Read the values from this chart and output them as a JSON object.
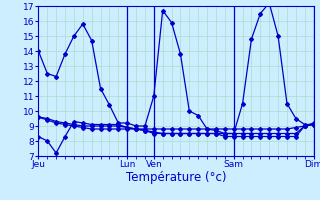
{
  "background_color": "#cceeff",
  "grid_color": "#aaddcc",
  "line_color": "#0000cc",
  "ylim": [
    7,
    17
  ],
  "yticks": [
    7,
    8,
    9,
    10,
    11,
    12,
    13,
    14,
    15,
    16,
    17
  ],
  "xlabel": "Température (°c)",
  "xlabel_color": "#0000cc",
  "day_labels": [
    "Jeu",
    "Lun",
    "Ven",
    "Sam",
    "Dim"
  ],
  "day_positions": [
    0,
    10,
    13,
    22,
    31
  ],
  "vline_positions": [
    10,
    13,
    22,
    31
  ],
  "n_points": 32,
  "series": [
    [
      14.0,
      12.5,
      12.3,
      13.8,
      15.0,
      15.8,
      14.7,
      11.5,
      10.4,
      9.2,
      9.2,
      9.0,
      9.0,
      11.0,
      16.7,
      15.9,
      13.8,
      10.0,
      9.7,
      8.8,
      8.7,
      8.5,
      8.5,
      10.5,
      14.8,
      16.5,
      17.2,
      15.0,
      10.5,
      9.5,
      9.1,
      9.1
    ],
    [
      9.6,
      9.5,
      9.3,
      9.2,
      9.1,
      9.0,
      9.0,
      9.0,
      9.0,
      9.0,
      8.9,
      8.8,
      8.7,
      8.6,
      8.5,
      8.5,
      8.5,
      8.5,
      8.5,
      8.5,
      8.5,
      8.5,
      8.5,
      8.5,
      8.5,
      8.5,
      8.5,
      8.5,
      8.5,
      8.5,
      9.0,
      9.2
    ],
    [
      8.3,
      8.0,
      7.2,
      8.3,
      9.3,
      9.2,
      9.1,
      9.1,
      9.1,
      9.1,
      8.9,
      8.8,
      8.7,
      8.5,
      8.5,
      8.5,
      8.5,
      8.5,
      8.5,
      8.5,
      8.5,
      8.3,
      8.3,
      8.3,
      8.3,
      8.3,
      8.3,
      8.3,
      8.3,
      8.3,
      9.0,
      9.1
    ],
    [
      9.6,
      9.4,
      9.2,
      9.1,
      9.0,
      8.9,
      8.8,
      8.8,
      8.8,
      8.8,
      8.8,
      8.8,
      8.8,
      8.8,
      8.8,
      8.8,
      8.8,
      8.8,
      8.8,
      8.8,
      8.8,
      8.8,
      8.8,
      8.8,
      8.8,
      8.8,
      8.8,
      8.8,
      8.8,
      8.9,
      9.0,
      9.1
    ]
  ],
  "marker": "D",
  "marker_size": 2.0,
  "line_width": 0.9,
  "tick_label_fontsize": 6.5,
  "xlabel_fontsize": 8.5
}
